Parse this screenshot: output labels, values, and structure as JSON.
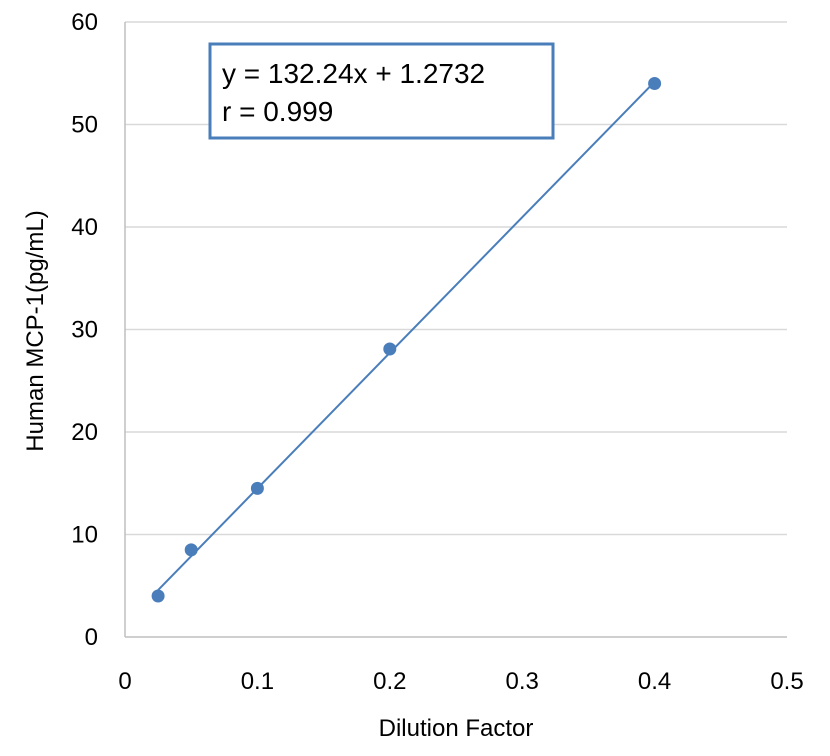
{
  "chart_data": {
    "type": "scatter",
    "title": "",
    "xlabel": "Dilution Factor",
    "ylabel": "Human MCP-1(pg/mL)",
    "xlim": [
      0,
      0.5
    ],
    "ylim": [
      0,
      60
    ],
    "x_ticks": [
      "0",
      "0.1",
      "0.2",
      "0.3",
      "0.4",
      "0.5"
    ],
    "y_ticks": [
      "0",
      "10",
      "20",
      "30",
      "40",
      "50",
      "60"
    ],
    "grid": true,
    "series": [
      {
        "x": [
          0.025,
          0.05,
          0.1,
          0.2,
          0.4
        ],
        "y": [
          4.0,
          8.5,
          14.5,
          28.1,
          54.0
        ],
        "color": "#4a7ebb",
        "marker": "circle"
      }
    ],
    "trendline": {
      "type": "linear",
      "slope": 132.24,
      "intercept": 1.2732,
      "x_range": [
        0.025,
        0.4
      ],
      "color": "#4a7ebb"
    },
    "annotation": {
      "lines": [
        "y = 132.24x + 1.2732",
        "r = 0.999"
      ],
      "border_color": "#4a7ebb"
    },
    "colors": {
      "grid": "#d9d9d9",
      "axis": "#bfbfbf"
    }
  }
}
